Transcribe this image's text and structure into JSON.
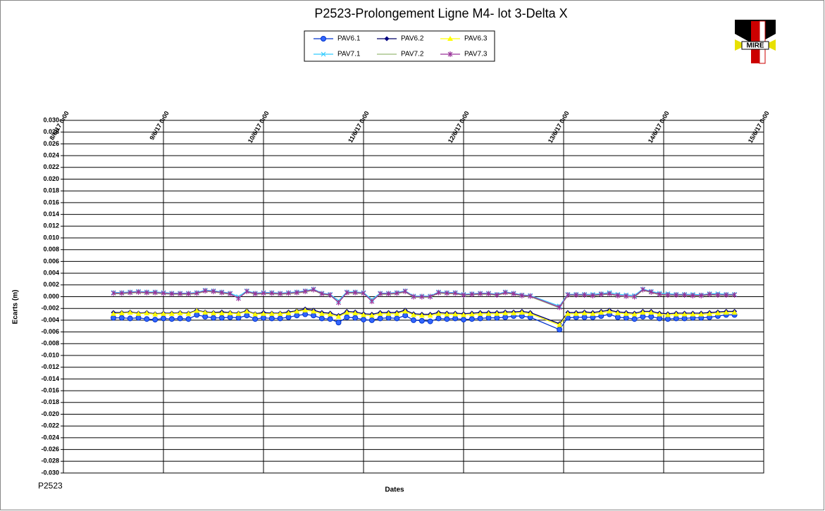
{
  "chart_data": {
    "type": "line",
    "title": "P2523-Prolongement  Ligne M4- lot 3-Delta X",
    "xlabel": "Dates",
    "ylabel": "Ecarts (m)",
    "footnote": "P2523",
    "logo_text": "MIRE",
    "xlim": [
      "8/6/17 0:00",
      "15/6/17 0:00"
    ],
    "xticks": [
      "8/6/17 0:00",
      "9/6/17 0:00",
      "10/6/17 0:00",
      "11/6/17 0:00",
      "12/6/17 0:00",
      "13/6/17 0:00",
      "14/6/17 0:00",
      "15/6/17 0:00"
    ],
    "ylim": [
      -0.03,
      0.03
    ],
    "yticks": [
      {
        "value": -0.03,
        "label": "-0.030"
      },
      {
        "value": -0.028,
        "label": "-0.028"
      },
      {
        "value": -0.026,
        "label": "-0.026"
      },
      {
        "value": -0.024,
        "label": "-0.024"
      },
      {
        "value": -0.022,
        "label": "-0.022"
      },
      {
        "value": -0.02,
        "label": "-0.020"
      },
      {
        "value": -0.018,
        "label": "-0.018"
      },
      {
        "value": -0.016,
        "label": "-0.016"
      },
      {
        "value": -0.014,
        "label": "-0.014"
      },
      {
        "value": -0.012,
        "label": "-0.012"
      },
      {
        "value": -0.01,
        "label": "-0.010"
      },
      {
        "value": -0.008,
        "label": "-0.008"
      },
      {
        "value": -0.006,
        "label": "-0.006"
      },
      {
        "value": -0.004,
        "label": "-0.004"
      },
      {
        "value": -0.002,
        "label": "-0.002"
      },
      {
        "value": 0,
        "label": "0.000"
      },
      {
        "value": 0.002,
        "label": "0.002"
      },
      {
        "value": 0.004,
        "label": "0.004"
      },
      {
        "value": 0.006,
        "label": "0.006"
      },
      {
        "value": 0.008,
        "label": "0.008"
      },
      {
        "value": 0.01,
        "label": "0.010"
      },
      {
        "value": 0.012,
        "label": "0.012"
      },
      {
        "value": 0.014,
        "label": "0.014"
      },
      {
        "value": 0.016,
        "label": "0.016"
      },
      {
        "value": 0.018,
        "label": "0.018"
      },
      {
        "value": 0.02,
        "label": "0.020"
      },
      {
        "value": 0.022,
        "label": "0.022"
      },
      {
        "value": 0.024,
        "label": "0.024"
      },
      {
        "value": 0.026,
        "label": "0.026"
      },
      {
        "value": 0.028,
        "label": "0.028"
      },
      {
        "value": 0.03,
        "label": "0.030"
      }
    ],
    "grid": true,
    "x": [
      "8/6/17 12:00",
      "8/6/17 14:00",
      "8/6/17 16:00",
      "8/6/17 18:00",
      "8/6/17 20:00",
      "8/6/17 22:00",
      "9/6/17 0:00",
      "9/6/17 2:00",
      "9/6/17 4:00",
      "9/6/17 6:00",
      "9/6/17 8:00",
      "9/6/17 10:00",
      "9/6/17 12:00",
      "9/6/17 14:00",
      "9/6/17 16:00",
      "9/6/17 18:00",
      "9/6/17 20:00",
      "9/6/17 22:00",
      "10/6/17 0:00",
      "10/6/17 2:00",
      "10/6/17 4:00",
      "10/6/17 6:00",
      "10/6/17 8:00",
      "10/6/17 10:00",
      "10/6/17 12:00",
      "10/6/17 14:00",
      "10/6/17 16:00",
      "10/6/17 18:00",
      "10/6/17 20:00",
      "10/6/17 22:00",
      "11/6/17 0:00",
      "11/6/17 2:00",
      "11/6/17 4:00",
      "11/6/17 6:00",
      "11/6/17 8:00",
      "11/6/17 10:00",
      "11/6/17 12:00",
      "11/6/17 14:00",
      "11/6/17 16:00",
      "11/6/17 18:00",
      "11/6/17 20:00",
      "11/6/17 22:00",
      "12/6/17 0:00",
      "12/6/17 2:00",
      "12/6/17 4:00",
      "12/6/17 6:00",
      "12/6/17 8:00",
      "12/6/17 10:00",
      "12/6/17 12:00",
      "12/6/17 14:00",
      "12/6/17 16:00",
      "12/6/17 23:00",
      "13/6/17 1:00",
      "13/6/17 3:00",
      "13/6/17 5:00",
      "13/6/17 7:00",
      "13/6/17 9:00",
      "13/6/17 11:00",
      "13/6/17 13:00",
      "13/6/17 15:00",
      "13/6/17 17:00",
      "13/6/17 19:00",
      "13/6/17 21:00",
      "13/6/17 23:00",
      "14/6/17 1:00",
      "14/6/17 3:00",
      "14/6/17 5:00",
      "14/6/17 7:00",
      "14/6/17 9:00",
      "14/6/17 11:00",
      "14/6/17 13:00",
      "14/6/17 15:00",
      "14/6/17 17:00"
    ],
    "series": [
      {
        "name": "PAV6.1",
        "color": "#0033cc",
        "fill": "#3366ff",
        "marker": "circle",
        "values": [
          -0.0036,
          -0.0036,
          -0.0037,
          -0.0036,
          -0.0038,
          -0.0039,
          -0.0037,
          -0.0038,
          -0.0037,
          -0.0038,
          -0.0031,
          -0.0034,
          -0.0036,
          -0.0036,
          -0.0035,
          -0.0036,
          -0.0032,
          -0.0038,
          -0.0036,
          -0.0037,
          -0.0037,
          -0.0035,
          -0.0032,
          -0.003,
          -0.0032,
          -0.0037,
          -0.0038,
          -0.0044,
          -0.0035,
          -0.0036,
          -0.0039,
          -0.004,
          -0.0037,
          -0.0036,
          -0.0037,
          -0.0032,
          -0.004,
          -0.0041,
          -0.0042,
          -0.0037,
          -0.0038,
          -0.0037,
          -0.0039,
          -0.0038,
          -0.0037,
          -0.0036,
          -0.0036,
          -0.0035,
          -0.0033,
          -0.0033,
          -0.0035,
          -0.0056,
          -0.0036,
          -0.0035,
          -0.0035,
          -0.0035,
          -0.0033,
          -0.003,
          -0.0035,
          -0.0036,
          -0.0038,
          -0.0034,
          -0.0034,
          -0.0037,
          -0.0038,
          -0.0037,
          -0.0037,
          -0.0036,
          -0.0036,
          -0.0035,
          -0.0033,
          -0.0031,
          -0.0031
        ]
      },
      {
        "name": "PAV6.2",
        "color": "#000066",
        "fill": "#000080",
        "marker": "diamond",
        "values": [
          -0.0027,
          -0.0027,
          -0.0026,
          -0.0028,
          -0.0027,
          -0.0029,
          -0.0028,
          -0.0028,
          -0.0027,
          -0.0028,
          -0.0023,
          -0.0026,
          -0.0027,
          -0.0026,
          -0.0027,
          -0.0028,
          -0.0024,
          -0.0029,
          -0.0027,
          -0.0028,
          -0.0028,
          -0.0026,
          -0.0024,
          -0.0021,
          -0.0023,
          -0.0027,
          -0.0028,
          -0.0032,
          -0.0025,
          -0.0026,
          -0.0029,
          -0.003,
          -0.0027,
          -0.0027,
          -0.0027,
          -0.0023,
          -0.0029,
          -0.003,
          -0.003,
          -0.0027,
          -0.0028,
          -0.0028,
          -0.0029,
          -0.0028,
          -0.0027,
          -0.0027,
          -0.0027,
          -0.0026,
          -0.0026,
          -0.0025,
          -0.0027,
          -0.0046,
          -0.0027,
          -0.0027,
          -0.0026,
          -0.0027,
          -0.0025,
          -0.0023,
          -0.0026,
          -0.0027,
          -0.0028,
          -0.0025,
          -0.0025,
          -0.0028,
          -0.0029,
          -0.0028,
          -0.0028,
          -0.0028,
          -0.0028,
          -0.0027,
          -0.0026,
          -0.0025,
          -0.0025
        ]
      },
      {
        "name": "PAV6.3",
        "color": "#ffff00",
        "fill": "#ffff00",
        "marker": "triangle",
        "values": [
          -0.0029,
          -0.0028,
          -0.0027,
          -0.0029,
          -0.0028,
          -0.003,
          -0.0029,
          -0.0029,
          -0.0028,
          -0.0029,
          -0.0024,
          -0.0027,
          -0.0028,
          -0.0028,
          -0.0028,
          -0.0029,
          -0.0025,
          -0.003,
          -0.0029,
          -0.0029,
          -0.0029,
          -0.0028,
          -0.0025,
          -0.0023,
          -0.0025,
          -0.0029,
          -0.003,
          -0.0034,
          -0.0027,
          -0.0028,
          -0.0031,
          -0.0032,
          -0.0029,
          -0.0029,
          -0.0029,
          -0.0025,
          -0.0031,
          -0.0032,
          -0.0032,
          -0.0029,
          -0.003,
          -0.003,
          -0.0031,
          -0.003,
          -0.0029,
          -0.0029,
          -0.0029,
          -0.0028,
          -0.0028,
          -0.0027,
          -0.0029,
          -0.0048,
          -0.0029,
          -0.0029,
          -0.0028,
          -0.0029,
          -0.0027,
          -0.0025,
          -0.0028,
          -0.0029,
          -0.003,
          -0.0027,
          -0.0027,
          -0.003,
          -0.0031,
          -0.003,
          -0.003,
          -0.003,
          -0.003,
          -0.0029,
          -0.0028,
          -0.0027,
          -0.0027
        ]
      },
      {
        "name": "PAV7.1",
        "color": "#33ccff",
        "fill": "#33ccff",
        "marker": "x",
        "values": [
          0.0007,
          0.0007,
          0.0008,
          0.0009,
          0.0008,
          0.0008,
          0.0007,
          0.0006,
          0.0006,
          0.0006,
          0.0007,
          0.0011,
          0.001,
          0.0008,
          0.0006,
          0.0,
          0.001,
          0.0006,
          0.0007,
          0.0007,
          0.0006,
          0.0007,
          0.0008,
          0.001,
          0.0013,
          0.0006,
          0.0004,
          -0.0007,
          0.0008,
          0.0008,
          0.0007,
          -0.0005,
          0.0006,
          0.0006,
          0.0007,
          0.001,
          0.0001,
          0.0001,
          0.0001,
          0.0008,
          0.0007,
          0.0007,
          0.0004,
          0.0005,
          0.0006,
          0.0006,
          0.0004,
          0.0008,
          0.0006,
          0.0003,
          0.0002,
          -0.0016,
          0.0004,
          0.0004,
          0.0004,
          0.0004,
          0.0005,
          0.0007,
          0.0004,
          0.0003,
          0.0002,
          0.0013,
          0.0009,
          0.0006,
          0.0005,
          0.0004,
          0.0004,
          0.0004,
          0.0003,
          0.0005,
          0.0005,
          0.0004,
          0.0004
        ]
      },
      {
        "name": "PAV7.2",
        "color": "#99bb77",
        "fill": "#99bb77",
        "marker": "none",
        "values": [
          0.0005,
          0.0005,
          0.0006,
          0.0007,
          0.0006,
          0.0006,
          0.0005,
          0.0004,
          0.0004,
          0.0004,
          0.0005,
          0.0009,
          0.0008,
          0.0006,
          0.0004,
          -0.0002,
          0.0008,
          0.0004,
          0.0005,
          0.0005,
          0.0004,
          0.0005,
          0.0006,
          0.0008,
          0.0011,
          0.0004,
          0.0002,
          -0.0009,
          0.0006,
          0.0006,
          0.0005,
          -0.0007,
          0.0004,
          0.0004,
          0.0005,
          0.0008,
          -0.0001,
          -0.0001,
          -0.0001,
          0.0006,
          0.0005,
          0.0005,
          0.0002,
          0.0003,
          0.0004,
          0.0004,
          0.0002,
          0.0006,
          0.0004,
          0.0001,
          0.0,
          -0.0019,
          0.0002,
          0.0002,
          0.0002,
          0.0001,
          0.0003,
          0.0004,
          0.0001,
          0.0,
          -0.0001,
          0.0011,
          0.0007,
          0.0003,
          0.0002,
          0.0002,
          0.0002,
          0.0001,
          0.0001,
          0.0003,
          0.0002,
          0.0002,
          0.0002
        ]
      },
      {
        "name": "PAV7.3",
        "color": "#993399",
        "fill": "#993399",
        "marker": "star",
        "values": [
          0.0006,
          0.0006,
          0.0007,
          0.0008,
          0.0007,
          0.0007,
          0.0006,
          0.0005,
          0.0005,
          0.0005,
          0.0006,
          0.001,
          0.0009,
          0.0007,
          0.0005,
          -0.0003,
          0.0009,
          0.0005,
          0.0006,
          0.0006,
          0.0005,
          0.0006,
          0.0007,
          0.0009,
          0.0012,
          0.0005,
          0.0003,
          -0.001,
          0.0007,
          0.0007,
          0.0006,
          -0.0008,
          0.0005,
          0.0005,
          0.0006,
          0.0009,
          0.0,
          0.0,
          0.0,
          0.0007,
          0.0006,
          0.0006,
          0.0003,
          0.0004,
          0.0005,
          0.0005,
          0.0003,
          0.0007,
          0.0005,
          0.0002,
          0.0001,
          -0.0018,
          0.0003,
          0.0003,
          0.0003,
          0.0002,
          0.0004,
          0.0005,
          0.0002,
          0.0001,
          0.0,
          0.0012,
          0.0008,
          0.0004,
          0.0003,
          0.0003,
          0.0003,
          0.0002,
          0.0002,
          0.0004,
          0.0003,
          0.0003,
          0.0003
        ]
      }
    ]
  }
}
